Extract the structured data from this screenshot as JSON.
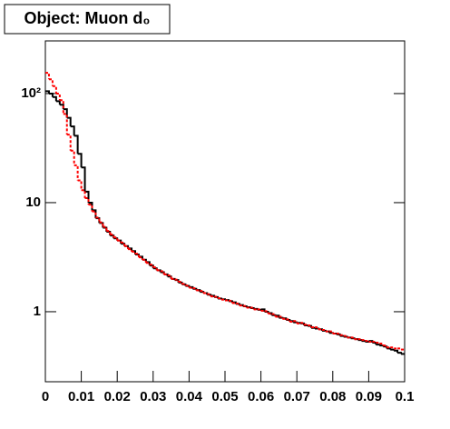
{
  "chart_data": {
    "type": "histogram",
    "title": "Object: Muon d₀",
    "bins": [
      0,
      0.001,
      0.002,
      0.003,
      0.004,
      0.005,
      0.006,
      0.007,
      0.008,
      0.009,
      0.01,
      0.011,
      0.012,
      0.013,
      0.014,
      0.015,
      0.016,
      0.017,
      0.018,
      0.019,
      0.02,
      0.021,
      0.022,
      0.023,
      0.024,
      0.025,
      0.026,
      0.027,
      0.028,
      0.029,
      0.03,
      0.031,
      0.032,
      0.033,
      0.034,
      0.035,
      0.036,
      0.037,
      0.038,
      0.039,
      0.04,
      0.041,
      0.042,
      0.043,
      0.044,
      0.045,
      0.046,
      0.047,
      0.048,
      0.049,
      0.05,
      0.051,
      0.052,
      0.053,
      0.054,
      0.055,
      0.056,
      0.057,
      0.058,
      0.059,
      0.06,
      0.061,
      0.062,
      0.063,
      0.064,
      0.065,
      0.066,
      0.067,
      0.068,
      0.069,
      0.07,
      0.071,
      0.072,
      0.073,
      0.074,
      0.075,
      0.076,
      0.077,
      0.078,
      0.079,
      0.08,
      0.081,
      0.082,
      0.083,
      0.084,
      0.085,
      0.086,
      0.087,
      0.088,
      0.089,
      0.09,
      0.091,
      0.092,
      0.093,
      0.094,
      0.095,
      0.096,
      0.097,
      0.098,
      0.099,
      0.1
    ],
    "series": [
      {
        "color": "#000000",
        "dashed": false,
        "values": [
          105,
          100,
          93,
          85,
          79,
          72,
          60,
          50,
          41,
          28,
          21,
          12.6,
          10,
          8.5,
          7.2,
          6.5,
          5.9,
          5.4,
          5.0,
          4.7,
          4.5,
          4.2,
          4.0,
          3.8,
          3.6,
          3.35,
          3.2,
          3.0,
          2.85,
          2.65,
          2.5,
          2.4,
          2.3,
          2.2,
          2.1,
          2.0,
          1.95,
          1.85,
          1.78,
          1.72,
          1.68,
          1.62,
          1.58,
          1.52,
          1.48,
          1.43,
          1.4,
          1.36,
          1.32,
          1.3,
          1.28,
          1.25,
          1.22,
          1.18,
          1.15,
          1.12,
          1.1,
          1.08,
          1.06,
          1.04,
          1.05,
          1.0,
          0.97,
          0.93,
          0.92,
          0.88,
          0.87,
          0.84,
          0.82,
          0.8,
          0.79,
          0.78,
          0.75,
          0.74,
          0.71,
          0.7,
          0.69,
          0.67,
          0.66,
          0.64,
          0.63,
          0.62,
          0.6,
          0.59,
          0.58,
          0.57,
          0.56,
          0.55,
          0.54,
          0.53,
          0.54,
          0.52,
          0.5,
          0.49,
          0.48,
          0.46,
          0.45,
          0.44,
          0.42,
          0.41
        ]
      },
      {
        "color": "#ff0000",
        "dashed": true,
        "values": [
          155,
          135,
          117,
          100,
          87,
          65,
          42,
          30,
          22,
          16,
          13,
          11,
          9.6,
          8.3,
          7.3,
          6.6,
          6.0,
          5.5,
          5.1,
          4.8,
          4.5,
          4.3,
          4.0,
          3.75,
          3.55,
          3.4,
          3.15,
          3.0,
          2.8,
          2.7,
          2.55,
          2.4,
          2.35,
          2.2,
          2.15,
          2.0,
          1.97,
          1.88,
          1.8,
          1.74,
          1.66,
          1.64,
          1.57,
          1.55,
          1.48,
          1.45,
          1.38,
          1.37,
          1.33,
          1.29,
          1.27,
          1.26,
          1.2,
          1.19,
          1.14,
          1.13,
          1.09,
          1.09,
          1.05,
          1.05,
          1.02,
          1.01,
          0.96,
          0.95,
          0.9,
          0.9,
          0.86,
          0.85,
          0.81,
          0.82,
          0.78,
          0.79,
          0.76,
          0.75,
          0.72,
          0.72,
          0.69,
          0.68,
          0.66,
          0.66,
          0.63,
          0.63,
          0.61,
          0.6,
          0.58,
          0.58,
          0.56,
          0.56,
          0.55,
          0.54,
          0.53,
          0.53,
          0.52,
          0.51,
          0.49,
          0.47,
          0.47,
          0.46,
          0.46,
          0.45
        ]
      }
    ],
    "xlim": [
      0,
      0.1
    ],
    "ylim": [
      0.228,
      304
    ],
    "log_y": true,
    "xticks": [
      0,
      0.01,
      0.02,
      0.03,
      0.04,
      0.05,
      0.06,
      0.07,
      0.08,
      0.09,
      0.1
    ],
    "yticks": [
      1,
      10,
      {
        "value": 100,
        "label": "10²"
      }
    ]
  }
}
